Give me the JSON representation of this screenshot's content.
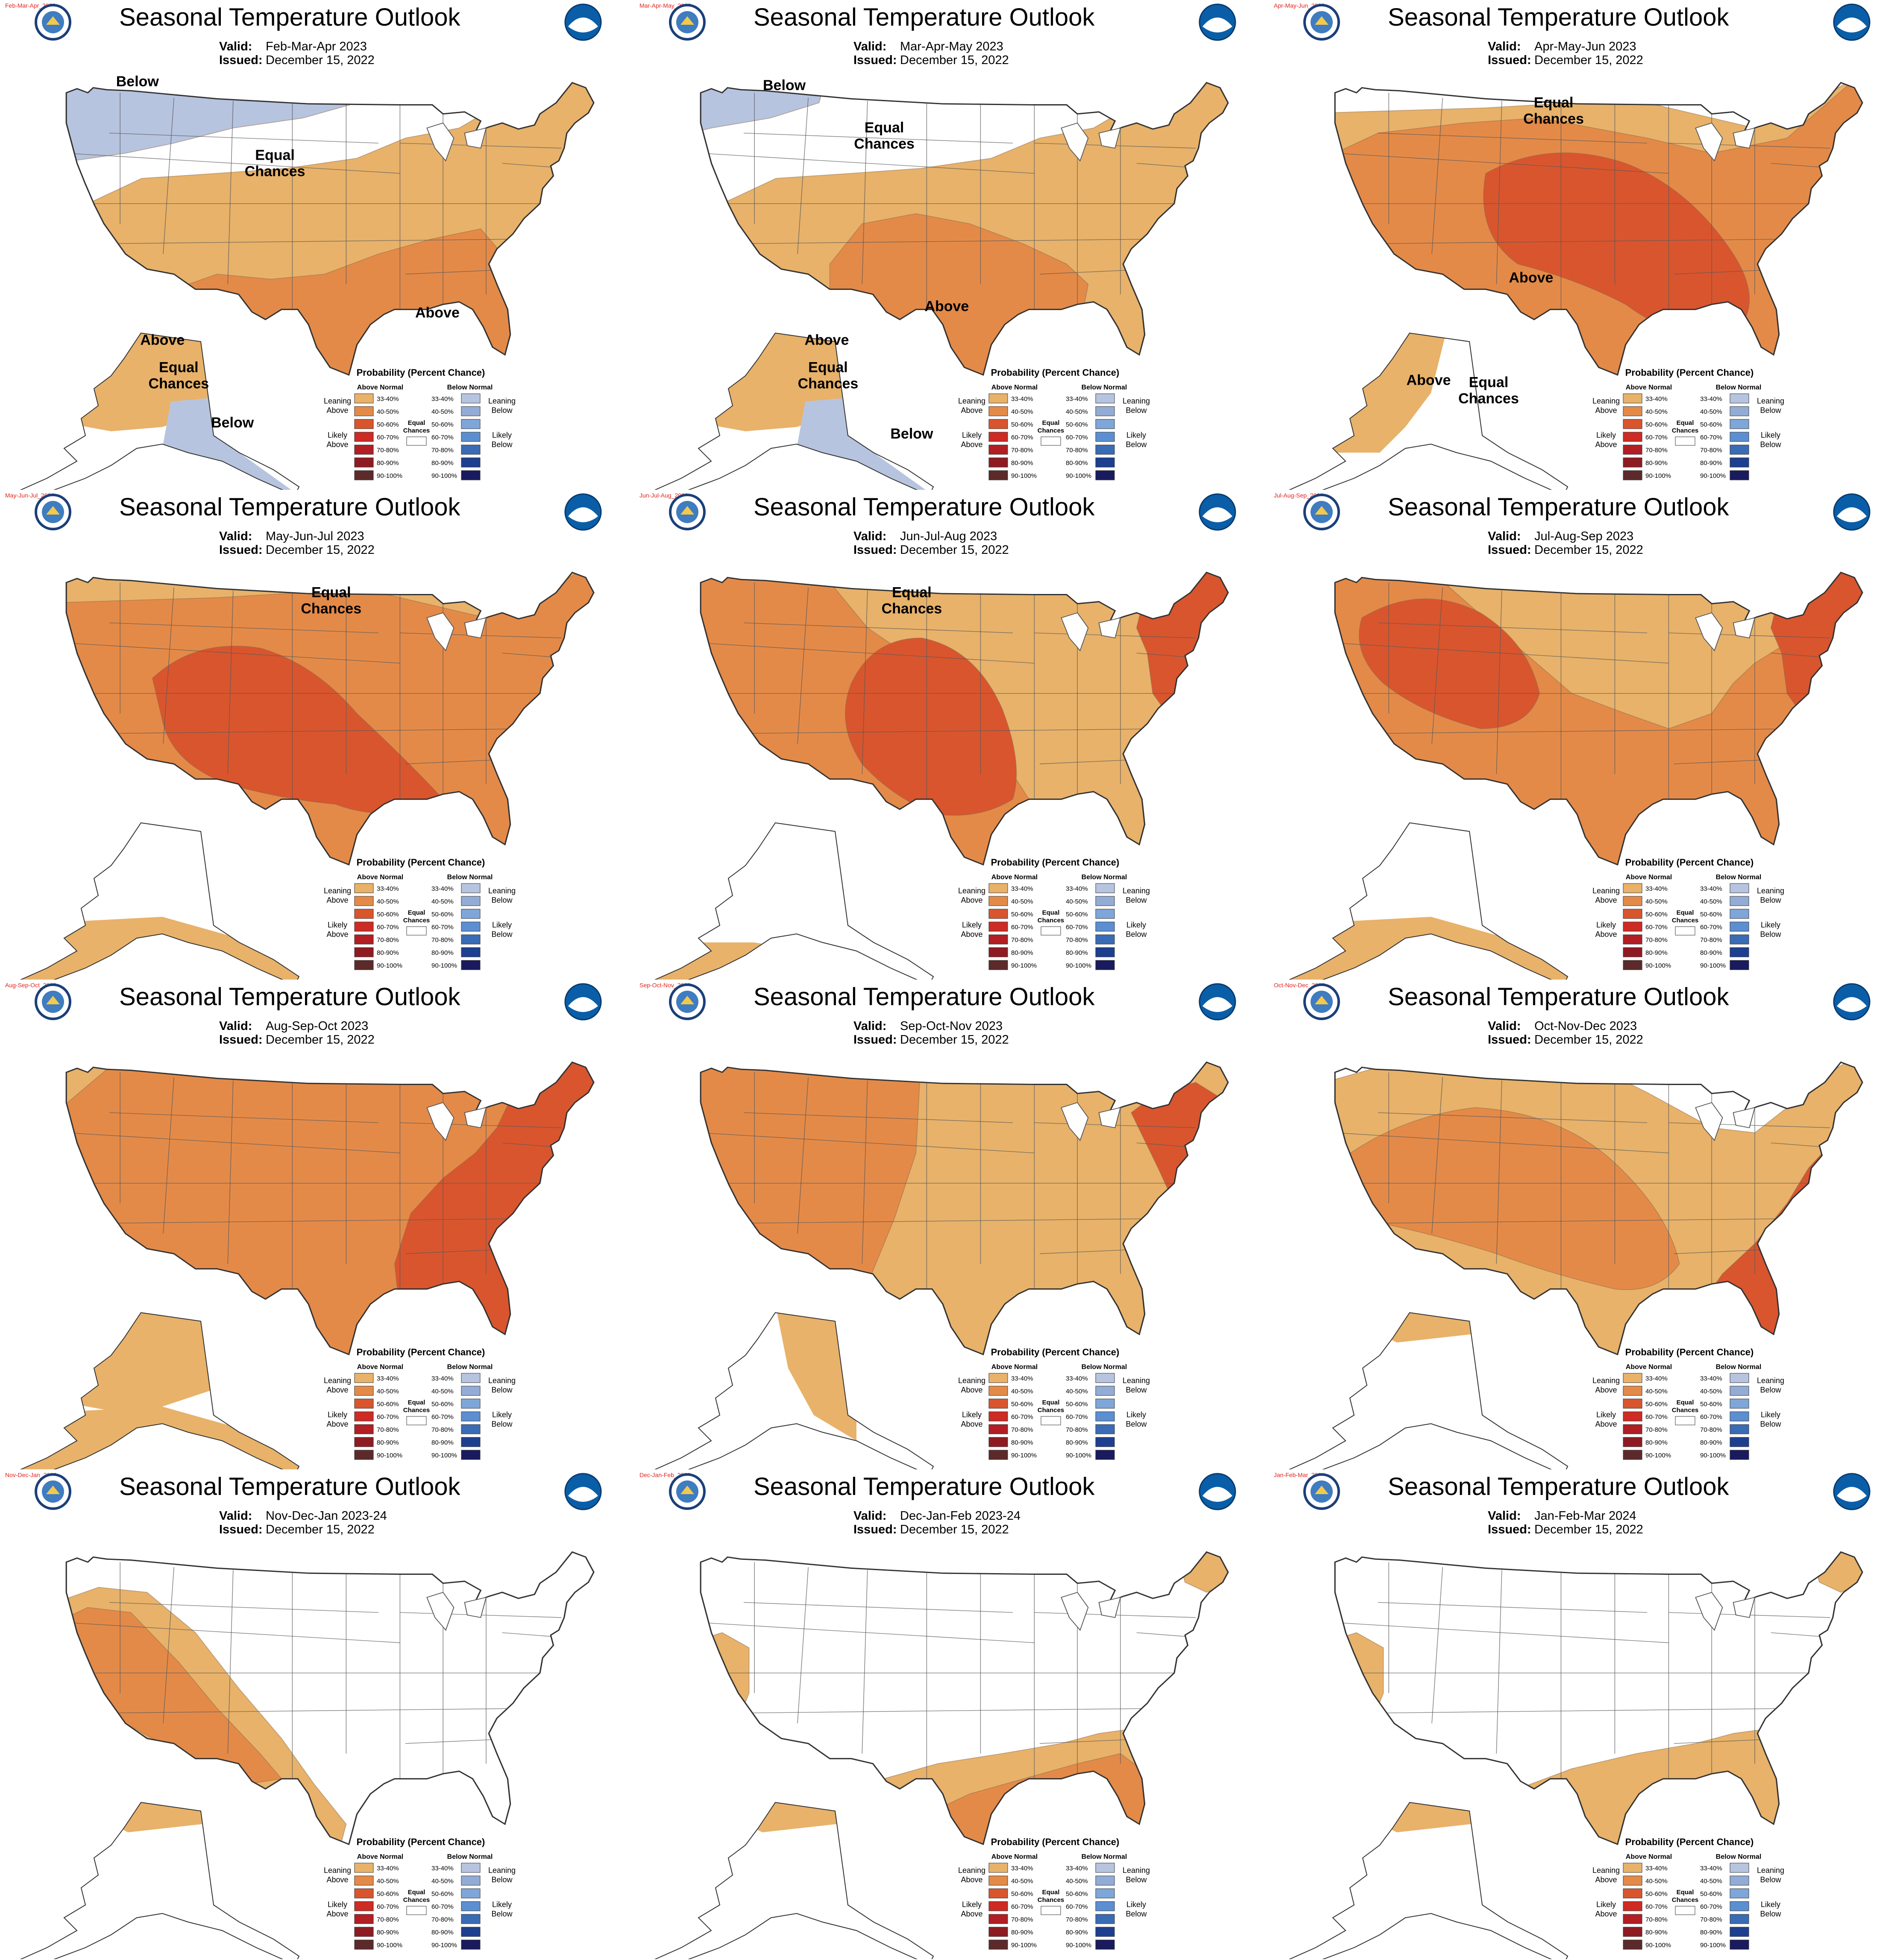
{
  "header": {
    "title": "Seasonal Temperature Outlook",
    "valid_label": "Valid:",
    "issued_label": "Issued:",
    "issued_date": "December 15, 2022"
  },
  "legend": {
    "title": "Probability (Percent Chance)",
    "above_header": "Above Normal",
    "below_header": "Below Normal",
    "leaning_above": [
      "Leaning",
      "Above"
    ],
    "likely_above": [
      "Likely",
      "Above"
    ],
    "leaning_below": [
      "Leaning",
      "Below"
    ],
    "likely_below": [
      "Likely",
      "Below"
    ],
    "equal_chances": [
      "Equal",
      "Chances"
    ],
    "bins": [
      "33-40%",
      "40-50%",
      "50-60%",
      "60-70%",
      "70-80%",
      "80-90%",
      "90-100%"
    ],
    "above_colors": [
      "#e8b26a",
      "#e48a48",
      "#d9552e",
      "#cd2b24",
      "#b21e23",
      "#8f1b22",
      "#5c2a2a"
    ],
    "below_colors": [
      "#b7c4df",
      "#93acd6",
      "#7ea6d9",
      "#5b8fd1",
      "#3a6bb5",
      "#1d3f8f",
      "#1a1a5e"
    ]
  },
  "labels": {
    "above": "Above",
    "below": "Below",
    "equal": [
      "Equal",
      "Chances"
    ]
  },
  "panels": [
    {
      "tag": "Feb-Mar-Apr_2023",
      "valid": "Feb-Mar-Apr 2023",
      "conus": {
        "lean_below": "nw",
        "lean_above": "south",
        "likely_above": "gulf",
        "above_label": [
          350,
          250
        ],
        "below_label": [
          110,
          65
        ],
        "equal_label": [
          220,
          130
        ]
      },
      "alaska": {
        "north": "above",
        "south": "below",
        "above_label": [
          130,
          272
        ],
        "below_label": [
          186,
          338
        ],
        "equal_label": [
          143,
          300
        ]
      }
    },
    {
      "tag": "Mar-Apr-May_2023",
      "valid": "Mar-Apr-May 2023",
      "conus": {
        "lean_below": "nw_small",
        "lean_above": "south",
        "likely_above": "southcentral",
        "above_label": [
          750,
          245
        ],
        "below_label": [
          620,
          68
        ],
        "equal_label": [
          700,
          108
        ]
      },
      "alaska": {
        "north": "above",
        "south": "below",
        "above_label": [
          654,
          272
        ],
        "below_label": [
          722,
          347
        ],
        "equal_label": [
          655,
          300
        ]
      }
    },
    {
      "tag": "Apr-May-Jun_2023",
      "valid": "Apr-May-Jun 2023",
      "conus": {
        "lean_above": "most",
        "likely_above": "south2",
        "likely_core": "sw_blob",
        "above_label": [
          1210,
          222
        ],
        "equal_label": [
          1228,
          88
        ]
      },
      "alaska": {
        "north": "above_west",
        "south": "equal",
        "above_label": [
          1128,
          304
        ],
        "equal_label": [
          1176,
          312
        ]
      }
    },
    {
      "tag": "May-Jun-Jul_2023",
      "valid": "May-Jun-Jul 2023",
      "conus": {
        "lean_above": "all",
        "likely_above": "most",
        "likely_core": "sw_big",
        "above_label": [
          210,
          222
        ],
        "equal_label": [
          265,
          470
        ]
      },
      "alaska": {
        "north": "equal",
        "south": "above",
        "above_label": [
          118,
          342
        ],
        "equal_label": [
          131,
          276
        ]
      }
    },
    {
      "tag": "Jun-Jul-Aug_2023",
      "valid": "Jun-Jul-Aug 2023",
      "conus": {
        "lean_above": "all",
        "likely_above": "west_half",
        "likely_core": "sw_blob2",
        "ne_core": true,
        "above_label": [
          682,
          200
        ],
        "above_label2": [
          955,
          108
        ],
        "above_label3": [
          917,
          286
        ],
        "equal_label": [
          722,
          470
        ]
      },
      "alaska": {
        "north": "equal",
        "south": "above_west",
        "above_label": [
          680,
          333
        ],
        "equal_label": [
          652,
          288
        ]
      }
    },
    {
      "tag": "Jul-Aug-Sep_2023",
      "valid": "Jul-Aug-Sep 2023",
      "conus": {
        "lean_above": "all",
        "likely_above": "most3",
        "likely_core": "nw_blob",
        "ne_core": true,
        "above_label": [
          1140,
          142
        ],
        "above_label2": [
          1463,
          100
        ],
        "equal_label": null
      },
      "alaska": {
        "north": "equal",
        "south": "above",
        "above_label": [
          1166,
          339
        ],
        "equal_label": [
          1154,
          283
        ]
      }
    },
    {
      "tag": "Aug-Sep-Oct_2023",
      "valid": "Aug-Sep-Oct 2023",
      "conus": {
        "lean_above": "all",
        "likely_above": "most4",
        "likely_core": "east_big",
        "above_label": [
          390,
          174
        ],
        "equal_label": null
      },
      "alaska": {
        "north": "above",
        "south": "above",
        "above_label": [
          147,
          326
        ],
        "equal_label": null
      }
    },
    {
      "tag": "Sep-Oct-Nov_2023",
      "valid": "Sep-Oct-Nov 2023",
      "conus": {
        "lean_above": "all",
        "likely_above": "west_big",
        "likely_core": "ne_small",
        "above_label": [
          648,
          140
        ],
        "above_label2": [
          932,
          117
        ],
        "equal_label": null
      },
      "alaska": {
        "north": "above_east",
        "south": "equal",
        "above_label": [
          664,
          302
        ],
        "equal_label": [
          633,
          340
        ]
      }
    },
    {
      "tag": "Oct-Nov-Dec_2023",
      "valid": "Oct-Nov-Dec 2023",
      "conus": {
        "lean_above": "most_s",
        "likely_above": "sw_big2",
        "likely_core": "se_small",
        "above_label": [
          1160,
          177
        ],
        "above_label2": [
          1397,
          238
        ],
        "equal_label": [
          1280,
          92
        ]
      },
      "alaska": {
        "north": "above_small",
        "south": "equal",
        "above_label": [
          1139,
          264
        ],
        "equal_label": [
          1162,
          311
        ]
      }
    },
    {
      "tag": "Nov-Dec-Jan_2023",
      "valid": "Nov-Dec-Jan 2023-24",
      "conus": {
        "lean_above": "west_strip",
        "likely_above": "west_core",
        "above_label": [
          118,
          190
        ],
        "equal_label": [
          327,
          167
        ]
      },
      "alaska": {
        "north": "above_small",
        "south": "equal",
        "above_label": [
          125,
          271
        ],
        "equal_label": [
          153,
          315
        ]
      }
    },
    {
      "tag": "Dec-Jan-Feb_2023",
      "valid": "Dec-Jan-Feb 2023-24",
      "conus": {
        "lean_above": "gulf_strip",
        "likely_above": "gulf_core",
        "ca_strip": true,
        "ne_strip": true,
        "above_label": [
          864,
          233
        ],
        "above_label2": [
          577,
          147
        ],
        "above_label3": [
          979,
          63
        ],
        "equal_label": [
          766,
          155
        ]
      },
      "alaska": {
        "north": "above_small",
        "south": "equal",
        "above_label": [
          632,
          271
        ],
        "equal_label": [
          655,
          309
        ]
      }
    },
    {
      "tag": "Jan-Feb-Mar_2024",
      "valid": "Jan-Feb-Mar 2024",
      "conus": {
        "lean_above": "gulf_strip2",
        "ca_strip": true,
        "ne_strip": true,
        "above_label": [
          1369,
          232
        ],
        "above_label2": [
          1085,
          147
        ],
        "above_label3": [
          1487,
          63
        ],
        "equal_label": [
          1273,
          162
        ]
      },
      "alaska": {
        "north": "above_small",
        "south": "equal",
        "above_label": [
          1140,
          271
        ],
        "equal_label": [
          1162,
          309
        ]
      }
    }
  ]
}
